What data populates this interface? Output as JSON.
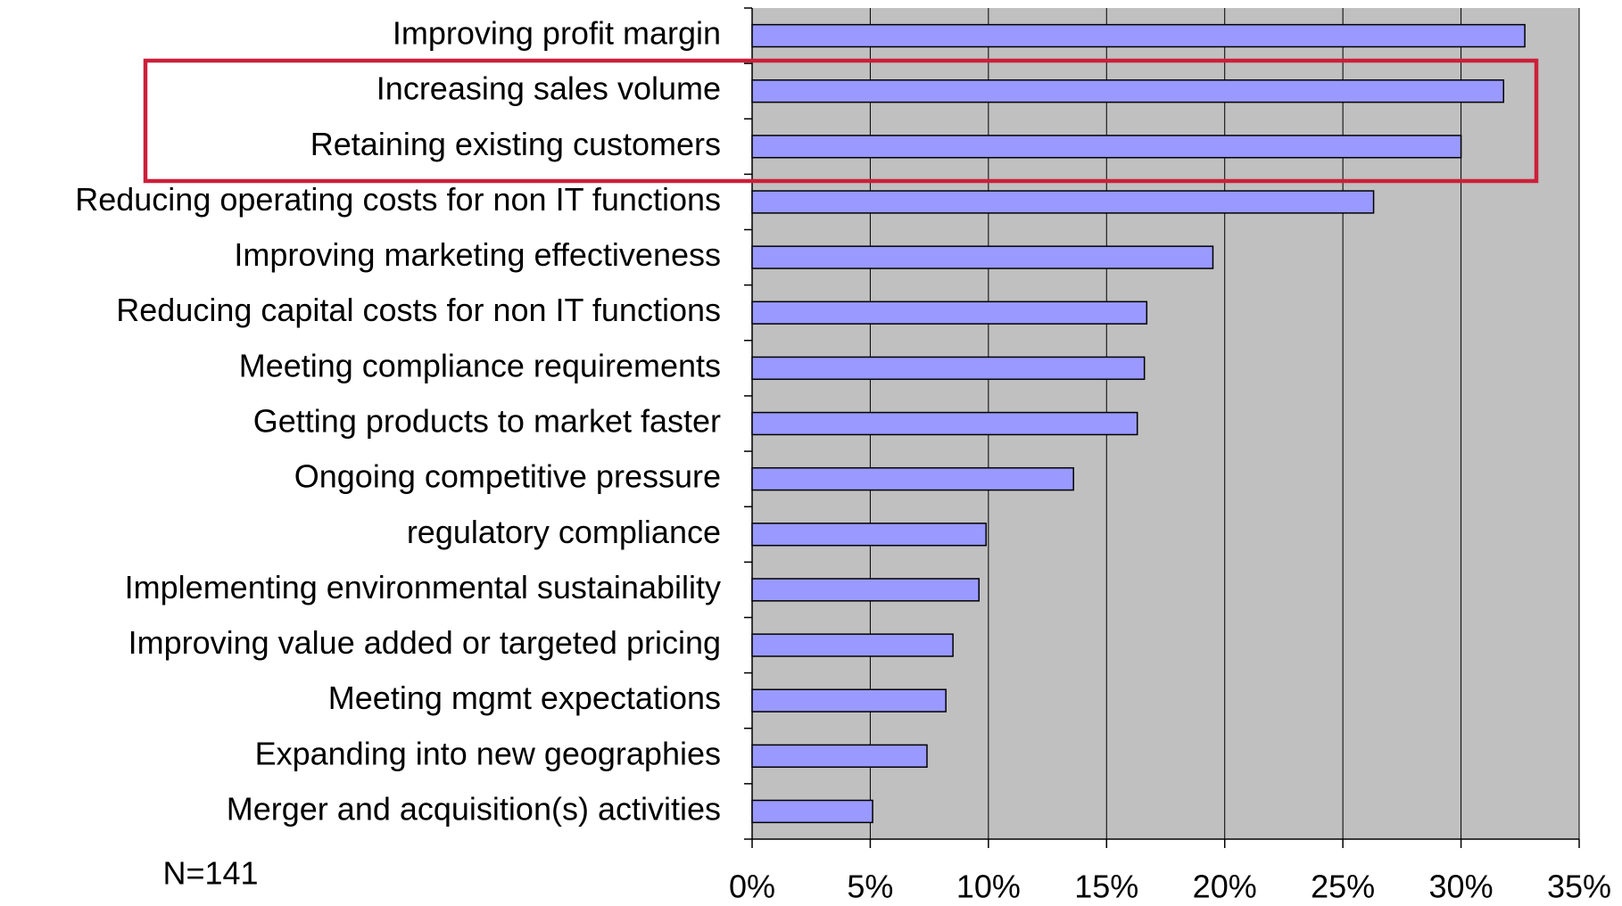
{
  "chart_data": {
    "type": "bar",
    "orientation": "horizontal",
    "annotations": [
      "N=141"
    ],
    "categories": [
      "Improving profit margin",
      "Increasing sales volume",
      "Retaining existing customers",
      "Reducing operating costs for non IT functions",
      "Improving marketing effectiveness",
      "Reducing capital costs for non IT functions",
      "Meeting compliance requirements",
      "Getting products to market faster",
      "Ongoing competitive pressure",
      "regulatory compliance",
      "Implementing environmental sustainability",
      "Improving value added or targeted pricing",
      "Meeting mgmt expectations",
      "Expanding into new geographies",
      "Merger and acquisition(s) activities"
    ],
    "values": [
      32.7,
      31.8,
      30.0,
      26.3,
      19.5,
      16.7,
      16.6,
      16.3,
      13.6,
      9.9,
      9.6,
      8.5,
      8.2,
      7.4,
      5.1
    ],
    "color": "#9999ff",
    "xlim": [
      0,
      35
    ],
    "xticks": [
      {
        "value": 0,
        "label": "0%"
      },
      {
        "value": 5,
        "label": "5%"
      },
      {
        "value": 10,
        "label": "10%"
      },
      {
        "value": 15,
        "label": "15%"
      },
      {
        "value": 20,
        "label": "20%"
      },
      {
        "value": 25,
        "label": "25%"
      },
      {
        "value": 30,
        "label": "30%"
      },
      {
        "value": 35,
        "label": "35%"
      }
    ],
    "grid": true
  }
}
